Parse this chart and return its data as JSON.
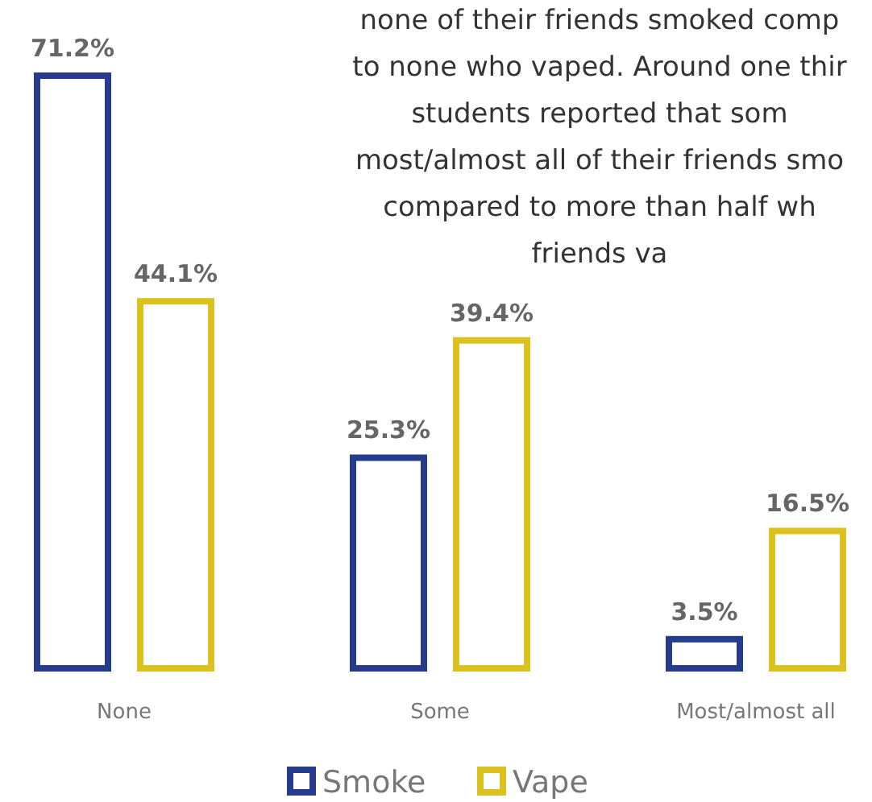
{
  "chart_data": {
    "type": "bar",
    "categories": [
      "None",
      "Some",
      "Most/almost all"
    ],
    "series": [
      {
        "name": "Smoke",
        "color": "#253c8c",
        "values": [
          71.2,
          25.3,
          3.5
        ],
        "value_labels": [
          "71.2%",
          "25.3%",
          "3.5%"
        ]
      },
      {
        "name": "Vape",
        "color": "#dcc21e",
        "values": [
          44.1,
          39.4,
          16.5
        ],
        "value_labels": [
          "44.1%",
          "39.4%",
          "16.5%"
        ]
      }
    ],
    "legend": "bottom",
    "annotations": [
      "none of their friends smoked comp",
      "to none who vaped. Around one thir",
      "students reported that som",
      "most/almost all of their friends smo",
      "compared to more than half wh",
      "friends va"
    ]
  }
}
